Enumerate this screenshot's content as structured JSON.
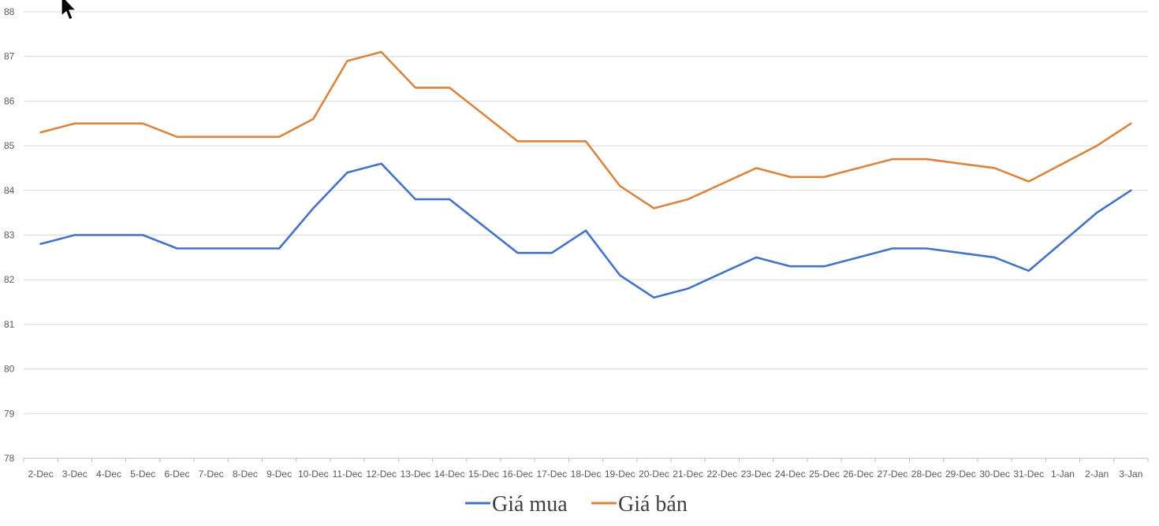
{
  "chart_data": {
    "type": "line",
    "categories": [
      "2-Dec",
      "3-Dec",
      "4-Dec",
      "5-Dec",
      "6-Dec",
      "7-Dec",
      "8-Dec",
      "9-Dec",
      "10-Dec",
      "11-Dec",
      "12-Dec",
      "13-Dec",
      "14-Dec",
      "15-Dec",
      "16-Dec",
      "17-Dec",
      "18-Dec",
      "19-Dec",
      "20-Dec",
      "21-Dec",
      "22-Dec",
      "23-Dec",
      "24-Dec",
      "25-Dec",
      "26-Dec",
      "27-Dec",
      "28-Dec",
      "29-Dec",
      "30-Dec",
      "31-Dec",
      "1-Jan",
      "2-Jan",
      "3-Jan"
    ],
    "series": [
      {
        "name": "Giá mua",
        "color": "#4472c4",
        "values": [
          82.8,
          83.0,
          83.0,
          83.0,
          82.7,
          82.7,
          82.7,
          82.7,
          83.6,
          84.4,
          84.6,
          83.8,
          83.8,
          83.2,
          82.6,
          82.6,
          83.1,
          82.1,
          81.6,
          81.8,
          82.15,
          82.5,
          82.3,
          82.3,
          82.5,
          82.7,
          82.7,
          82.6,
          82.5,
          82.2,
          82.85,
          83.5,
          84.0
        ]
      },
      {
        "name": "Giá bán",
        "color": "#d9843f",
        "values": [
          85.3,
          85.5,
          85.5,
          85.5,
          85.2,
          85.2,
          85.2,
          85.2,
          85.6,
          86.9,
          87.1,
          86.3,
          86.3,
          85.7,
          85.1,
          85.1,
          85.1,
          84.1,
          83.6,
          83.8,
          84.15,
          84.5,
          84.3,
          84.3,
          84.5,
          84.7,
          84.7,
          84.6,
          84.5,
          84.2,
          84.6,
          85.0,
          85.5
        ]
      }
    ],
    "ylim": [
      78,
      88
    ],
    "yticks": [
      88,
      87,
      86,
      85,
      84,
      83,
      82,
      81,
      80,
      79,
      78
    ],
    "grid": true,
    "legend": "bottom",
    "title": "",
    "xlabel": "",
    "ylabel": ""
  }
}
